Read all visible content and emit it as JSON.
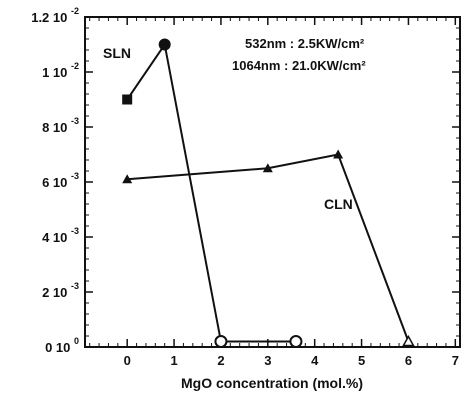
{
  "chart_data": {
    "type": "line",
    "xlabel": "MgO concentration (mol.%)",
    "ylabel": "",
    "xlim": [
      -0.9,
      7.1
    ],
    "ylim": [
      0,
      0.012
    ],
    "x_ticks": [
      {
        "value": 0,
        "label": "0"
      },
      {
        "value": 1,
        "label": "1"
      },
      {
        "value": 2,
        "label": "2"
      },
      {
        "value": 3,
        "label": "3"
      },
      {
        "value": 4,
        "label": "4"
      },
      {
        "value": 5,
        "label": "5"
      },
      {
        "value": 6,
        "label": "6"
      },
      {
        "value": 7,
        "label": "7"
      }
    ],
    "y_ticks": [
      {
        "value": 0,
        "mantissa": "0 10",
        "exponent": "0"
      },
      {
        "value": 0.002,
        "mantissa": "2 10",
        "exponent": "-3"
      },
      {
        "value": 0.004,
        "mantissa": "4 10",
        "exponent": "-3"
      },
      {
        "value": 0.006,
        "mantissa": "6 10",
        "exponent": "-3"
      },
      {
        "value": 0.008,
        "mantissa": "8 10",
        "exponent": "-3"
      },
      {
        "value": 0.01,
        "mantissa": "1 10",
        "exponent": "-2"
      },
      {
        "value": 0.012,
        "mantissa": "1.2 10",
        "exponent": "-2"
      }
    ],
    "annotations": [
      "532nm :  2.5KW/cm²",
      "1064nm : 21.0KW/cm²"
    ],
    "series": [
      {
        "name": "SLN",
        "color": "#111111",
        "points": [
          {
            "x": 0,
            "y": 0.009,
            "marker": "square-filled"
          },
          {
            "x": 0.8,
            "y": 0.011,
            "marker": "circle-filled"
          },
          {
            "x": 2.0,
            "y": 0.0002,
            "marker": "circle-open"
          },
          {
            "x": 3.6,
            "y": 0.0002,
            "marker": "circle-open"
          }
        ]
      },
      {
        "name": "CLN",
        "color": "#111111",
        "points": [
          {
            "x": 0,
            "y": 0.0061,
            "marker": "triangle-filled"
          },
          {
            "x": 3.0,
            "y": 0.0065,
            "marker": "triangle-filled"
          },
          {
            "x": 4.5,
            "y": 0.007,
            "marker": "triangle-filled"
          },
          {
            "x": 6.0,
            "y": 0.0002,
            "marker": "triangle-open"
          }
        ]
      }
    ]
  }
}
